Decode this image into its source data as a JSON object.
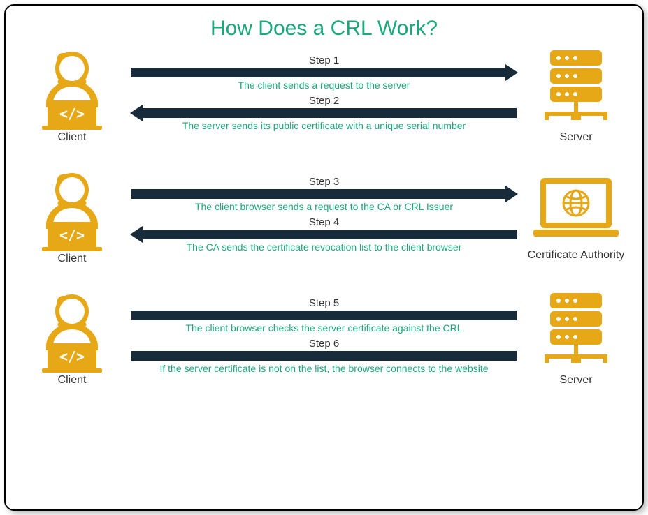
{
  "colors": {
    "title": "#1ca97a",
    "accent": "#e6a817",
    "arrow": "#182b3a",
    "desc": "#1ca97a",
    "label": "#333333",
    "step_title": "#333333"
  },
  "title": "How Does a CRL Work?",
  "sections": [
    {
      "left": {
        "icon": "client",
        "label": "Client"
      },
      "right": {
        "icon": "server",
        "label": "Server"
      },
      "steps": [
        {
          "title": "Step 1",
          "direction": "right",
          "desc": "The client sends a request to the server"
        },
        {
          "title": "Step 2",
          "direction": "left",
          "desc": "The server sends its public certificate with a unique serial number"
        }
      ]
    },
    {
      "left": {
        "icon": "client",
        "label": "Client"
      },
      "right": {
        "icon": "ca",
        "label": "Certificate Authority"
      },
      "steps": [
        {
          "title": "Step 3",
          "direction": "right",
          "desc": "The client browser sends a request to the CA or CRL Issuer"
        },
        {
          "title": "Step 4",
          "direction": "left",
          "desc": "The CA sends the certificate revocation list to the client browser"
        }
      ]
    },
    {
      "left": {
        "icon": "client",
        "label": "Client"
      },
      "right": {
        "icon": "server",
        "label": "Server"
      },
      "steps": [
        {
          "title": "Step 5",
          "direction": "none",
          "desc": "The client browser checks the server certificate against the CRL"
        },
        {
          "title": "Step 6",
          "direction": "none",
          "desc": "If the server certificate is not on the list, the browser connects to the website"
        }
      ]
    }
  ]
}
